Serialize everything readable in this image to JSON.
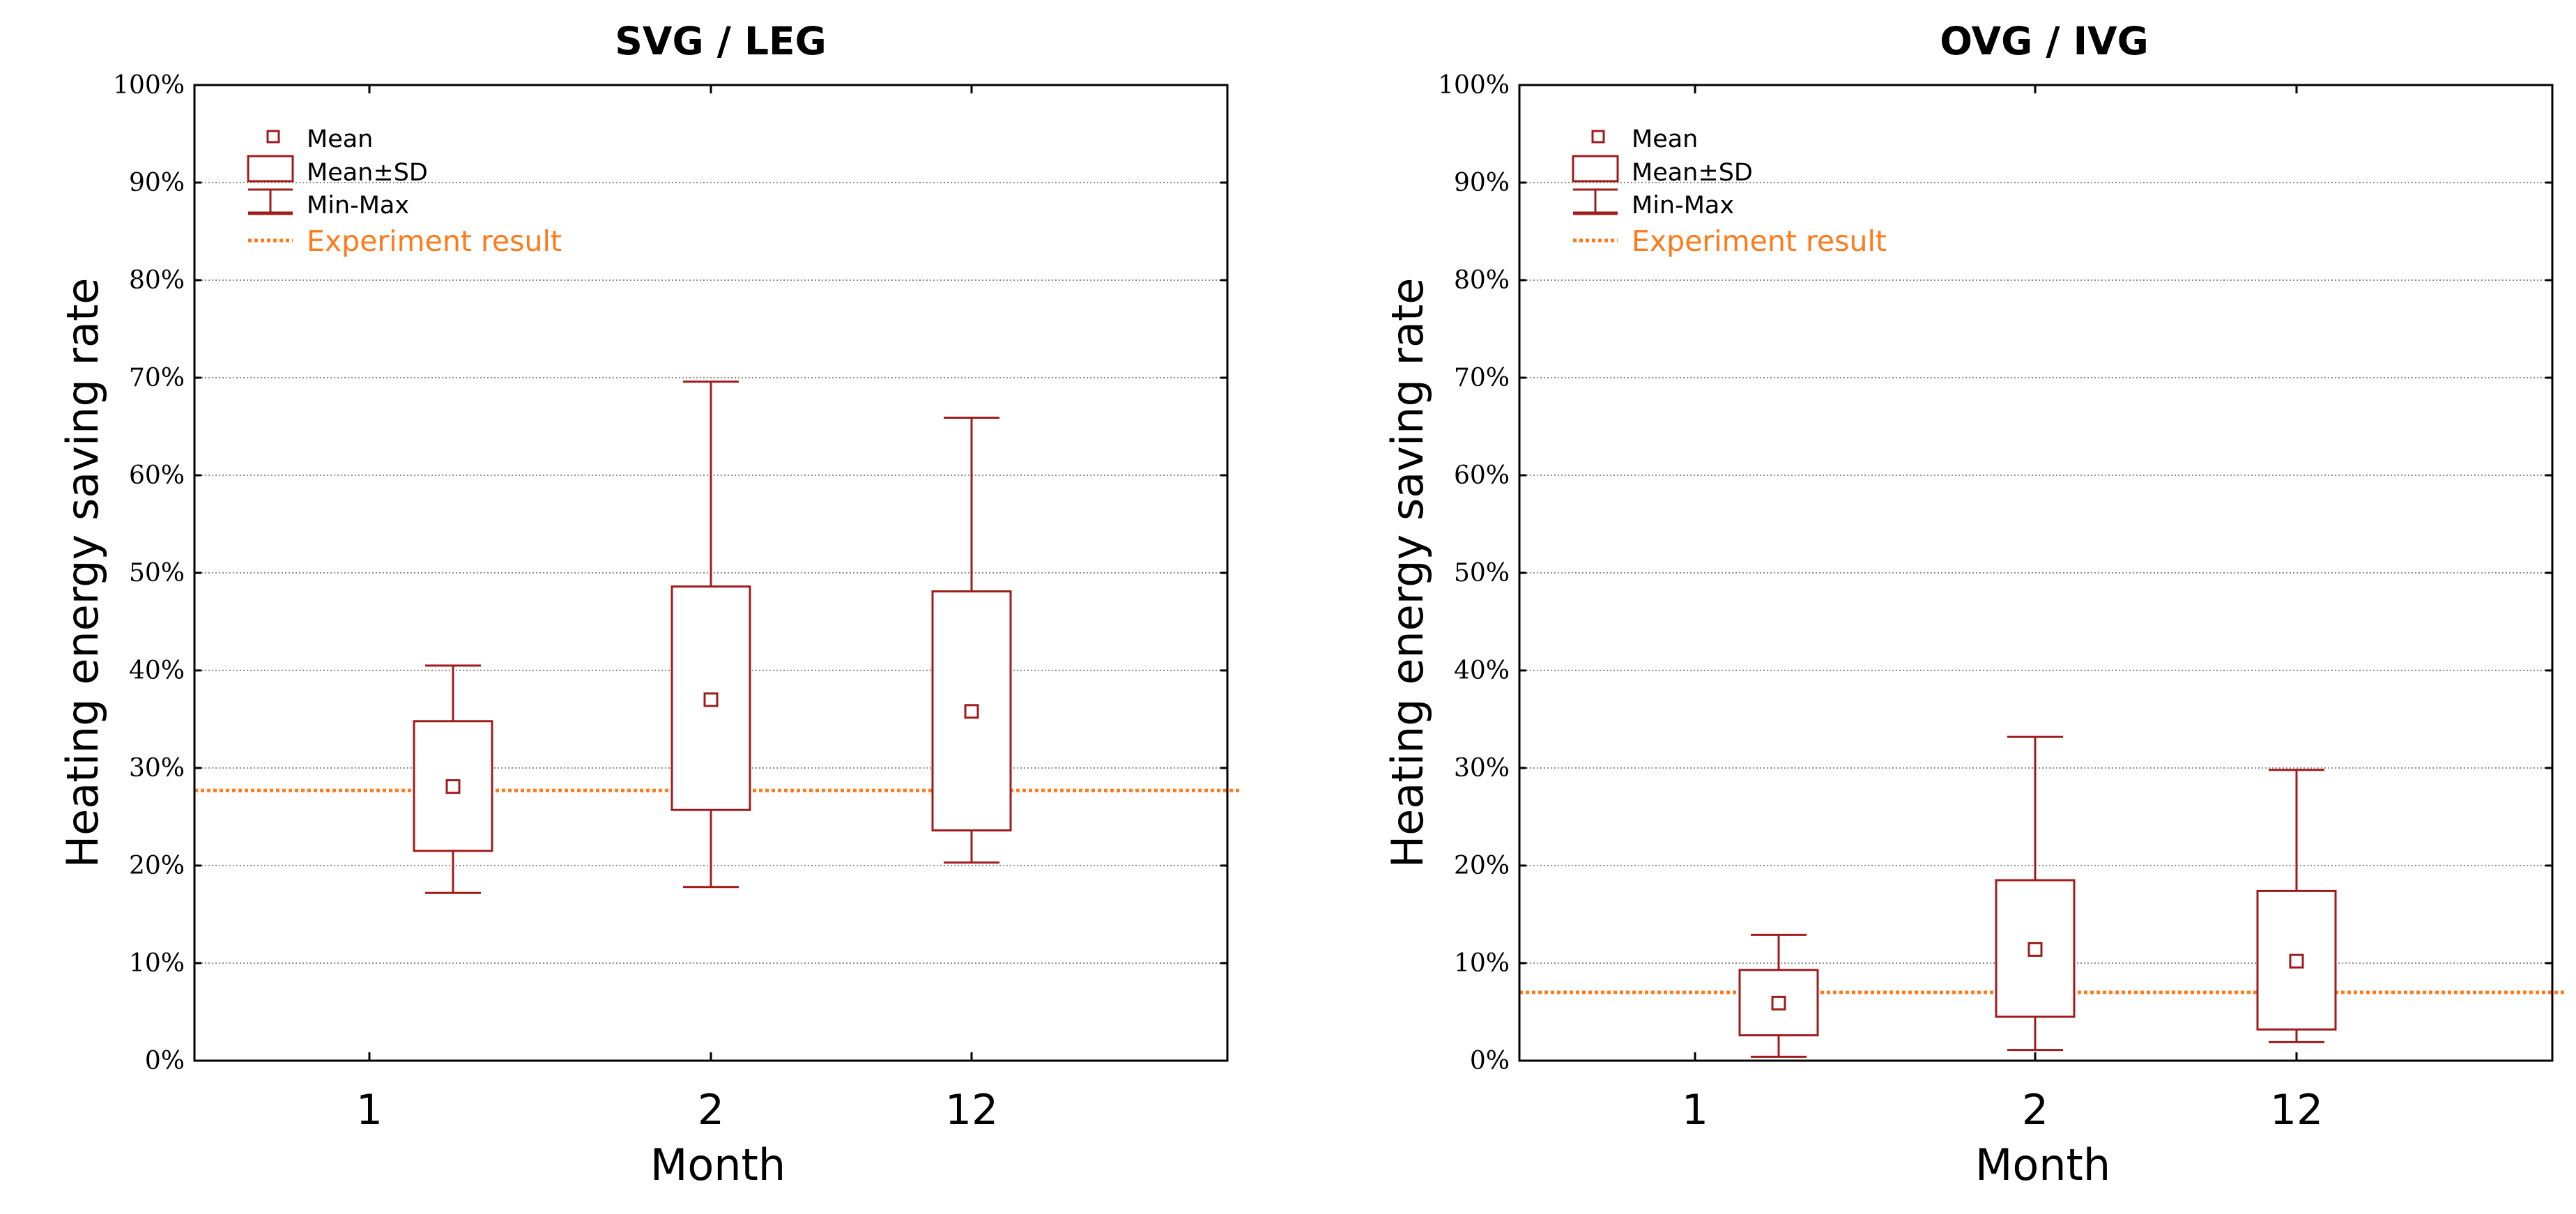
{
  "chart_data": [
    {
      "type": "box",
      "title": "SVG / LEG",
      "xlabel": "Month",
      "ylabel": "Heating energy saving rate",
      "categories": [
        "1",
        "2",
        "12"
      ],
      "ylim": [
        0,
        100
      ],
      "yticks": [
        "0%",
        "10%",
        "20%",
        "30%",
        "40%",
        "50%",
        "60%",
        "70%",
        "80%",
        "90%",
        "100%"
      ],
      "grid": true,
      "legend_position": "top-left",
      "legend": {
        "mean": "Mean",
        "sd": "Mean±SD",
        "minmax": "Min-Max",
        "experiment": "Experiment result"
      },
      "series": [
        {
          "category": "1",
          "min": 17.2,
          "mean_minus_sd": 21.5,
          "mean": 28.1,
          "mean_plus_sd": 34.8,
          "max": 40.5
        },
        {
          "category": "2",
          "min": 17.8,
          "mean_minus_sd": 25.7,
          "mean": 37.0,
          "mean_plus_sd": 48.6,
          "max": 69.6
        },
        {
          "category": "12",
          "min": 20.3,
          "mean_minus_sd": 23.6,
          "mean": 35.8,
          "mean_plus_sd": 48.1,
          "max": 65.9
        }
      ],
      "experiment_result": 27.7,
      "colors": {
        "box": "#a01c1c",
        "experiment": "#ff7a1a",
        "grid": "#8c8c8c",
        "axis": "#000000"
      }
    },
    {
      "type": "box",
      "title": "OVG / IVG",
      "xlabel": "Month",
      "ylabel": "Heating energy saving rate",
      "categories": [
        "1",
        "2",
        "12"
      ],
      "ylim": [
        0,
        100
      ],
      "yticks": [
        "0%",
        "10%",
        "20%",
        "30%",
        "40%",
        "50%",
        "60%",
        "70%",
        "80%",
        "90%",
        "100%"
      ],
      "grid": true,
      "legend_position": "top-left",
      "legend": {
        "mean": "Mean",
        "sd": "Mean±SD",
        "minmax": "Min-Max",
        "experiment": "Experiment result"
      },
      "series": [
        {
          "category": "1",
          "min": 0.4,
          "mean_minus_sd": 2.6,
          "mean": 5.9,
          "mean_plus_sd": 9.3,
          "max": 12.9
        },
        {
          "category": "2",
          "min": 1.1,
          "mean_minus_sd": 4.5,
          "mean": 11.4,
          "mean_plus_sd": 18.5,
          "max": 33.2
        },
        {
          "category": "12",
          "min": 1.9,
          "mean_minus_sd": 3.2,
          "mean": 10.2,
          "mean_plus_sd": 17.4,
          "max": 29.8
        }
      ],
      "experiment_result": 7.0,
      "colors": {
        "box": "#a01c1c",
        "experiment": "#ff7a1a",
        "grid": "#8c8c8c",
        "axis": "#000000"
      }
    }
  ]
}
